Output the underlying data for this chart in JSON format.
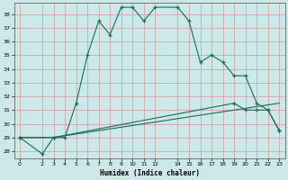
{
  "xlabel": "Humidex (Indice chaleur)",
  "bg_color": "#cce8e8",
  "grid_color": "#cc9999",
  "line_color": "#1a6b5a",
  "ylim": [
    27.5,
    38.8
  ],
  "xlim": [
    -0.5,
    23.5
  ],
  "yticks": [
    28,
    29,
    30,
    31,
    32,
    33,
    34,
    35,
    36,
    37,
    38
  ],
  "xticks": [
    0,
    2,
    3,
    4,
    5,
    6,
    7,
    8,
    9,
    10,
    11,
    12,
    14,
    15,
    16,
    17,
    18,
    19,
    20,
    21,
    22,
    23
  ],
  "line1_x": [
    0,
    2,
    3,
    4,
    5,
    6,
    7,
    8,
    9,
    10,
    11,
    12,
    14,
    15,
    16,
    17,
    18,
    19,
    20,
    21,
    22,
    23
  ],
  "line1_y": [
    29,
    27.8,
    29,
    29,
    31.5,
    35.0,
    37.5,
    36.5,
    38.5,
    38.5,
    37.5,
    38.5,
    38.5,
    37.5,
    34.5,
    35.0,
    34.5,
    33.5,
    33.5,
    31.5,
    31,
    29.5
  ],
  "line2_x": [
    0,
    3,
    19,
    20,
    21,
    22,
    23
  ],
  "line2_y": [
    29,
    29,
    31.5,
    31.0,
    31.0,
    31.0,
    29.5
  ],
  "line3_x": [
    0,
    3,
    23
  ],
  "line3_y": [
    29,
    29,
    31.5
  ]
}
